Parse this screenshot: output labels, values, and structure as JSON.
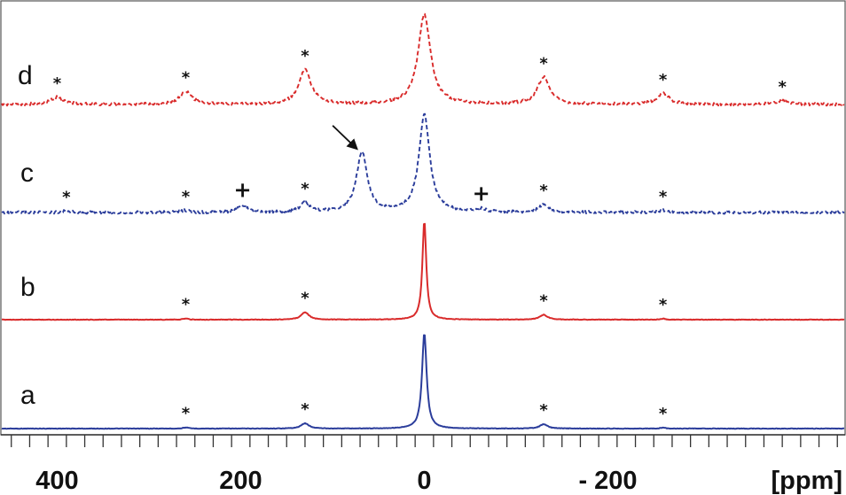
{
  "chart_data": {
    "type": "line",
    "subtype": "stacked NMR spectra",
    "x_unit_label": "[ppm]",
    "x_axis_reversed": true,
    "xlim": [
      450,
      -450
    ],
    "x_tick_labels": [
      {
        "value": 400,
        "text": "400"
      },
      {
        "value": 200,
        "text": "200"
      },
      {
        "value": 0,
        "text": "0"
      },
      {
        "value": -200,
        "text": "- 200"
      }
    ],
    "minor_tick_step": 20,
    "grid": false,
    "legend": "none",
    "series": [
      {
        "label": "a",
        "color": "#2b3d9b",
        "dash": "solid",
        "stack_level": 0,
        "peaks": [
          {
            "x": 0,
            "height": 1.0,
            "width": 3
          },
          {
            "x": 130,
            "height": 0.055,
            "width": 5
          },
          {
            "x": -130,
            "height": 0.045,
            "width": 5
          },
          {
            "x": 260,
            "height": 0.012,
            "width": 3
          },
          {
            "x": -260,
            "height": 0.01,
            "width": 3
          }
        ],
        "markers": [
          {
            "x": 130,
            "text": "*"
          },
          {
            "x": -130,
            "text": "*"
          },
          {
            "x": 260,
            "text": "*"
          },
          {
            "x": -260,
            "text": "*"
          }
        ]
      },
      {
        "label": "b",
        "color": "#d92b2b",
        "dash": "solid",
        "stack_level": 1,
        "peaks": [
          {
            "x": 0,
            "height": 1.0,
            "width": 2.5
          },
          {
            "x": 130,
            "height": 0.075,
            "width": 5
          },
          {
            "x": -130,
            "height": 0.05,
            "width": 5
          },
          {
            "x": 260,
            "height": 0.012,
            "width": 3
          },
          {
            "x": -260,
            "height": 0.01,
            "width": 3
          }
        ],
        "markers": [
          {
            "x": 130,
            "text": "*"
          },
          {
            "x": -130,
            "text": "*"
          },
          {
            "x": 260,
            "text": "*"
          },
          {
            "x": -260,
            "text": "*"
          }
        ]
      },
      {
        "label": "c",
        "color": "#2b3d9b",
        "dash": "dashed",
        "stack_level": 2,
        "peaks": [
          {
            "x": 0,
            "height": 1.0,
            "width": 7
          },
          {
            "x": 68,
            "height": 0.62,
            "width": 7
          },
          {
            "x": 130,
            "height": 0.1,
            "width": 6
          },
          {
            "x": -130,
            "height": 0.08,
            "width": 6
          },
          {
            "x": 198,
            "height": 0.07,
            "width": 6
          },
          {
            "x": -62,
            "height": 0.03,
            "width": 6
          },
          {
            "x": 260,
            "height": 0.02,
            "width": 5
          },
          {
            "x": -260,
            "height": 0.02,
            "width": 5
          },
          {
            "x": 390,
            "height": 0.015,
            "width": 5
          }
        ],
        "markers": [
          {
            "x": 390,
            "text": "*"
          },
          {
            "x": 260,
            "text": "*"
          },
          {
            "x": 198,
            "text": "+"
          },
          {
            "x": 130,
            "text": "*"
          },
          {
            "x": -62,
            "text": "+"
          },
          {
            "x": -130,
            "text": "*"
          },
          {
            "x": -260,
            "text": "*"
          }
        ],
        "arrow_to_x": 68
      },
      {
        "label": "d",
        "color": "#d92b2b",
        "dash": "dashed",
        "stack_level": 3,
        "peaks": [
          {
            "x": 0,
            "height": 1.0,
            "width": 8
          },
          {
            "x": 130,
            "height": 0.38,
            "width": 8
          },
          {
            "x": -130,
            "height": 0.3,
            "width": 8
          },
          {
            "x": 260,
            "height": 0.14,
            "width": 8
          },
          {
            "x": -260,
            "height": 0.12,
            "width": 8
          },
          {
            "x": 400,
            "height": 0.08,
            "width": 8
          },
          {
            "x": -390,
            "height": 0.04,
            "width": 8
          }
        ],
        "markers": [
          {
            "x": 400,
            "text": "*"
          },
          {
            "x": 260,
            "text": "*"
          },
          {
            "x": 130,
            "text": "*"
          },
          {
            "x": -130,
            "text": "*"
          },
          {
            "x": -260,
            "text": "*"
          },
          {
            "x": -390,
            "text": "*"
          }
        ]
      }
    ]
  }
}
